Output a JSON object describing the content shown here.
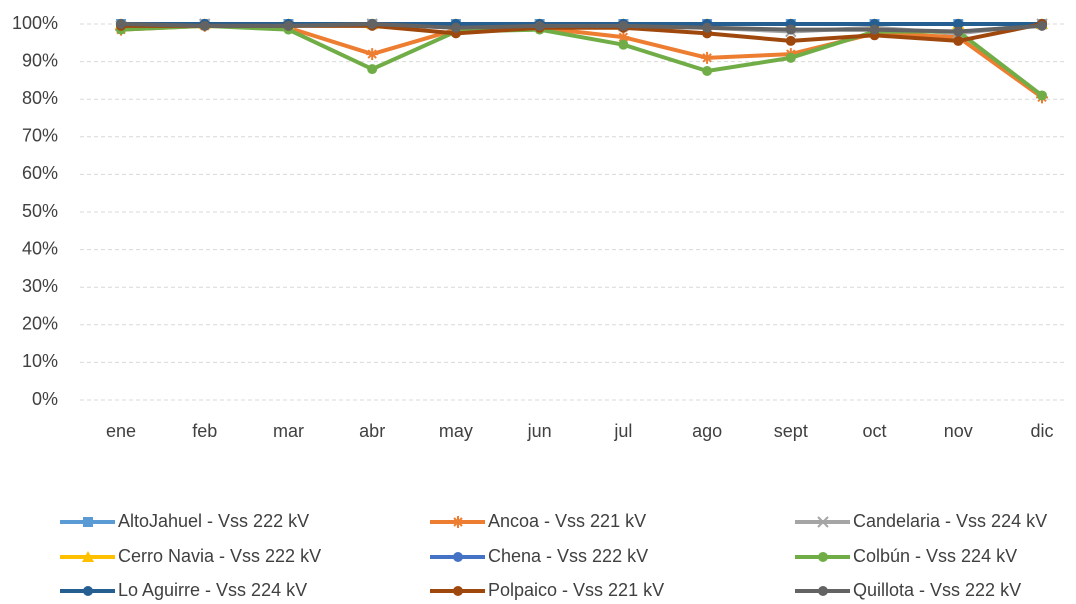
{
  "chart_data": {
    "type": "line",
    "categories": [
      "ene",
      "feb",
      "mar",
      "abr",
      "may",
      "jun",
      "jul",
      "ago",
      "sept",
      "oct",
      "nov",
      "dic"
    ],
    "ylim": [
      0,
      100
    ],
    "yticks": [
      {
        "value": 0,
        "label": "0%"
      },
      {
        "value": 10,
        "label": "10%"
      },
      {
        "value": 20,
        "label": "20%"
      },
      {
        "value": 30,
        "label": "30%"
      },
      {
        "value": 40,
        "label": "40%"
      },
      {
        "value": 50,
        "label": "50%"
      },
      {
        "value": 60,
        "label": "60%"
      },
      {
        "value": 70,
        "label": "70%"
      },
      {
        "value": 80,
        "label": "80%"
      },
      {
        "value": 90,
        "label": "90%"
      },
      {
        "value": 100,
        "label": "100%"
      }
    ],
    "grid": true,
    "legend": "bottom",
    "series": [
      {
        "name": "AltoJahuel - Vss 222 kV",
        "color": "#5b9bd5",
        "marker": "square",
        "values": [
          100,
          100,
          100,
          100,
          100,
          100,
          100,
          100,
          100,
          100,
          100,
          100
        ]
      },
      {
        "name": "Ancoa - Vss 221 kV",
        "color": "#ed7d31",
        "marker": "star",
        "values": [
          98.5,
          99.5,
          99,
          92,
          98.5,
          99,
          96.5,
          91,
          92,
          97.5,
          96.5,
          80.5
        ]
      },
      {
        "name": "Candelaria - Vss 224 kV",
        "color": "#a5a5a5",
        "marker": "x",
        "values": [
          99.5,
          100,
          99.5,
          100,
          99,
          99.5,
          99.5,
          99,
          98,
          99,
          97.5,
          100
        ]
      },
      {
        "name": "Cerro Navia - Vss 222 kV",
        "color": "#ffc000",
        "marker": "triangle",
        "values": [
          100,
          100,
          100,
          100,
          100,
          100,
          100,
          100,
          100,
          100,
          100,
          100
        ]
      },
      {
        "name": "Chena - Vss 222 kV",
        "color": "#4472c4",
        "marker": "circle",
        "values": [
          100,
          100,
          100,
          100,
          100,
          100,
          100,
          100,
          100,
          100,
          100,
          100
        ]
      },
      {
        "name": "Colbún - Vss 224 kV",
        "color": "#70ad47",
        "marker": "circle",
        "values": [
          98.5,
          99.5,
          98.5,
          88,
          98,
          98.5,
          94.5,
          87.5,
          91,
          98,
          98,
          81
        ]
      },
      {
        "name": "Lo Aguirre - Vss 224 kV",
        "color": "#255e91",
        "marker": "circle",
        "values": [
          100,
          100,
          100,
          100,
          100,
          100,
          100,
          100,
          100,
          100,
          100,
          100
        ]
      },
      {
        "name": "Polpaico - Vss 221 kV",
        "color": "#9e480e",
        "marker": "circle",
        "values": [
          99.5,
          99.5,
          99.5,
          99.5,
          97.5,
          99,
          99,
          97.5,
          95.5,
          97,
          95.5,
          100
        ]
      },
      {
        "name": "Quillota - Vss 222 kV",
        "color": "#636363",
        "marker": "circle",
        "values": [
          100,
          99.5,
          99.5,
          100,
          99,
          99.5,
          99.5,
          99,
          98.5,
          98.5,
          98,
          99.5
        ]
      }
    ]
  }
}
